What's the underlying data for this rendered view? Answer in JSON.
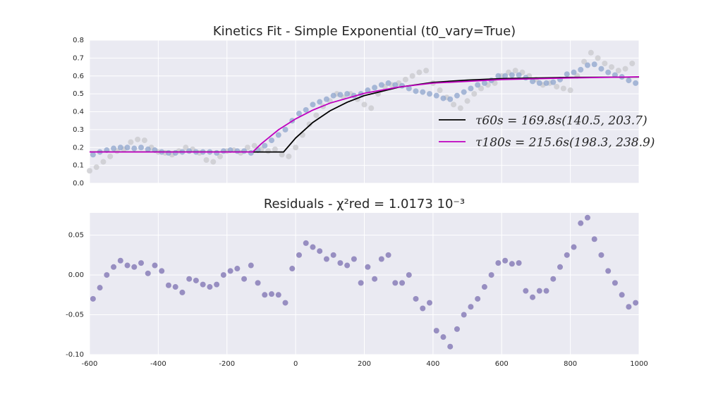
{
  "chart_data": [
    {
      "type": "line",
      "title": "Kinetics Fit - Simple Exponential (t0_vary=True)",
      "xlim": [
        -600,
        1000
      ],
      "xticks": [
        -600,
        -400,
        -200,
        0,
        200,
        400,
        600,
        800,
        1000
      ],
      "xtick_labels": false,
      "ylim": [
        0,
        0.8
      ],
      "yticks": [
        {
          "value": 0,
          "label": "0.0"
        },
        0.1,
        0.2,
        0.3,
        0.4,
        0.5,
        0.6,
        0.7,
        0.8
      ],
      "grid": true,
      "background": "#eaeaf2",
      "legend": "lower right",
      "series": [
        {
          "type": "scatter",
          "color": "#c8c8cc",
          "x": [
            -600,
            -580,
            -560,
            -540,
            -520,
            -500,
            -480,
            -460,
            -440,
            -420,
            -400,
            -380,
            -360,
            -340,
            -320,
            -300,
            -280,
            -260,
            -240,
            -220,
            -200,
            -180,
            -160,
            -140,
            -120,
            -100,
            -80,
            -60,
            -40,
            -20,
            0,
            20,
            40,
            60,
            80,
            100,
            120,
            140,
            160,
            180,
            200,
            220,
            240,
            260,
            280,
            300,
            320,
            340,
            360,
            380,
            400,
            420,
            440,
            460,
            480,
            500,
            520,
            540,
            560,
            580,
            600,
            620,
            640,
            660,
            680,
            700,
            720,
            740,
            760,
            780,
            800,
            820,
            840,
            860,
            880,
            900,
            920,
            940,
            960,
            980
          ],
          "values": [
            0.07,
            0.09,
            0.12,
            0.15,
            0.18,
            0.19,
            0.23,
            0.245,
            0.24,
            0.2,
            0.175,
            0.17,
            0.16,
            0.18,
            0.2,
            0.19,
            0.17,
            0.13,
            0.12,
            0.15,
            0.18,
            0.185,
            0.17,
            0.2,
            0.21,
            0.19,
            0.18,
            0.19,
            0.16,
            0.15,
            0.2,
            0.27,
            0.33,
            0.38,
            0.43,
            0.46,
            0.5,
            0.48,
            0.5,
            0.47,
            0.44,
            0.42,
            0.5,
            0.54,
            0.55,
            0.56,
            0.58,
            0.6,
            0.62,
            0.63,
            0.56,
            0.52,
            0.48,
            0.44,
            0.42,
            0.46,
            0.5,
            0.53,
            0.55,
            0.56,
            0.6,
            0.62,
            0.63,
            0.62,
            0.6,
            0.58,
            0.55,
            0.56,
            0.54,
            0.53,
            0.52,
            0.6,
            0.68,
            0.73,
            0.7,
            0.67,
            0.65,
            0.63,
            0.64,
            0.67
          ]
        },
        {
          "type": "scatter",
          "color": "#8ea4cc",
          "x": [
            -590,
            -570,
            -550,
            -530,
            -510,
            -490,
            -470,
            -450,
            -430,
            -410,
            -390,
            -370,
            -350,
            -330,
            -310,
            -290,
            -270,
            -250,
            -230,
            -210,
            -190,
            -170,
            -150,
            -130,
            -110,
            -90,
            -70,
            -50,
            -30,
            -10,
            10,
            30,
            50,
            70,
            90,
            110,
            130,
            150,
            170,
            190,
            210,
            230,
            250,
            270,
            290,
            310,
            330,
            350,
            370,
            390,
            410,
            430,
            450,
            470,
            490,
            510,
            530,
            550,
            570,
            590,
            610,
            630,
            650,
            670,
            690,
            710,
            730,
            750,
            770,
            790,
            810,
            830,
            850,
            870,
            890,
            910,
            930,
            950,
            970,
            990
          ],
          "values": [
            0.16,
            0.175,
            0.185,
            0.195,
            0.2,
            0.2,
            0.195,
            0.2,
            0.19,
            0.185,
            0.175,
            0.17,
            0.17,
            0.175,
            0.18,
            0.175,
            0.175,
            0.175,
            0.17,
            0.18,
            0.185,
            0.18,
            0.18,
            0.17,
            0.185,
            0.21,
            0.24,
            0.27,
            0.3,
            0.35,
            0.39,
            0.41,
            0.44,
            0.455,
            0.47,
            0.49,
            0.495,
            0.5,
            0.49,
            0.5,
            0.52,
            0.535,
            0.55,
            0.56,
            0.55,
            0.545,
            0.53,
            0.515,
            0.51,
            0.5,
            0.49,
            0.475,
            0.47,
            0.49,
            0.51,
            0.53,
            0.55,
            0.56,
            0.575,
            0.6,
            0.6,
            0.605,
            0.605,
            0.59,
            0.57,
            0.56,
            0.56,
            0.565,
            0.58,
            0.61,
            0.62,
            0.635,
            0.66,
            0.665,
            0.64,
            0.62,
            0.605,
            0.595,
            0.575,
            0.56
          ]
        },
        {
          "type": "line",
          "name": "τ60s = 169.8s(140.5, 203.7)",
          "color": "#000000",
          "x": [
            -600,
            -35,
            0,
            50,
            100,
            150,
            200,
            300,
            400,
            500,
            600,
            800,
            1000
          ],
          "values": [
            0.175,
            0.175,
            0.253,
            0.34,
            0.405,
            0.453,
            0.49,
            0.537,
            0.564,
            0.577,
            0.585,
            0.592,
            0.594
          ]
        },
        {
          "type": "line",
          "name": "τ180s = 215.6s(198.3, 238.9)",
          "color": "#bf00bf",
          "x": [
            -600,
            -125,
            -100,
            -50,
            0,
            50,
            100,
            200,
            300,
            400,
            600,
            800,
            1000
          ],
          "values": [
            0.175,
            0.175,
            0.221,
            0.299,
            0.36,
            0.409,
            0.448,
            0.503,
            0.538,
            0.56,
            0.58,
            0.589,
            0.595
          ]
        }
      ]
    },
    {
      "type": "scatter",
      "title": "Residuals - χ²red = 1.0173 10⁻³",
      "xlim": [
        -600,
        1000
      ],
      "xticks": [
        -600,
        -400,
        -200,
        0,
        200,
        400,
        600,
        800,
        1000
      ],
      "ylim": [
        -0.1,
        0.078
      ],
      "yticks": [
        {
          "value": -0.1,
          "label": "-0.10"
        },
        -0.05,
        {
          "value": 0,
          "label": "0.00"
        },
        0.05
      ],
      "grid": true,
      "background": "#eaeaf2",
      "series": [
        {
          "type": "scatter",
          "color": "#7b6fb0",
          "x": [
            -590,
            -570,
            -550,
            -530,
            -510,
            -490,
            -470,
            -450,
            -430,
            -410,
            -390,
            -370,
            -350,
            -330,
            -310,
            -290,
            -270,
            -250,
            -230,
            -210,
            -190,
            -170,
            -150,
            -130,
            -110,
            -90,
            -70,
            -50,
            -30,
            -10,
            10,
            30,
            50,
            70,
            90,
            110,
            130,
            150,
            170,
            190,
            210,
            230,
            250,
            270,
            290,
            310,
            330,
            350,
            370,
            390,
            410,
            430,
            450,
            470,
            490,
            510,
            530,
            550,
            570,
            590,
            610,
            630,
            650,
            670,
            690,
            710,
            730,
            750,
            770,
            790,
            810,
            830,
            850,
            870,
            890,
            910,
            930,
            950,
            970,
            990
          ],
          "values": [
            -0.03,
            -0.016,
            0.0,
            0.01,
            0.018,
            0.012,
            0.01,
            0.015,
            0.002,
            0.012,
            0.005,
            -0.013,
            -0.015,
            -0.022,
            -0.005,
            -0.007,
            -0.012,
            -0.015,
            -0.012,
            0.0,
            0.005,
            0.008,
            -0.005,
            0.012,
            -0.01,
            -0.025,
            -0.024,
            -0.025,
            -0.035,
            0.008,
            0.025,
            0.04,
            0.035,
            0.03,
            0.02,
            0.025,
            0.015,
            0.012,
            0.02,
            -0.01,
            0.01,
            -0.005,
            0.02,
            0.025,
            -0.01,
            -0.01,
            0.0,
            -0.03,
            -0.042,
            -0.035,
            -0.07,
            -0.078,
            -0.09,
            -0.068,
            -0.05,
            -0.04,
            -0.03,
            -0.015,
            0.0,
            0.015,
            0.018,
            0.014,
            0.015,
            -0.02,
            -0.028,
            -0.02,
            -0.02,
            -0.005,
            0.01,
            0.025,
            0.035,
            0.065,
            0.072,
            0.045,
            0.025,
            0.005,
            -0.01,
            -0.025,
            -0.04,
            -0.035
          ]
        }
      ]
    }
  ]
}
